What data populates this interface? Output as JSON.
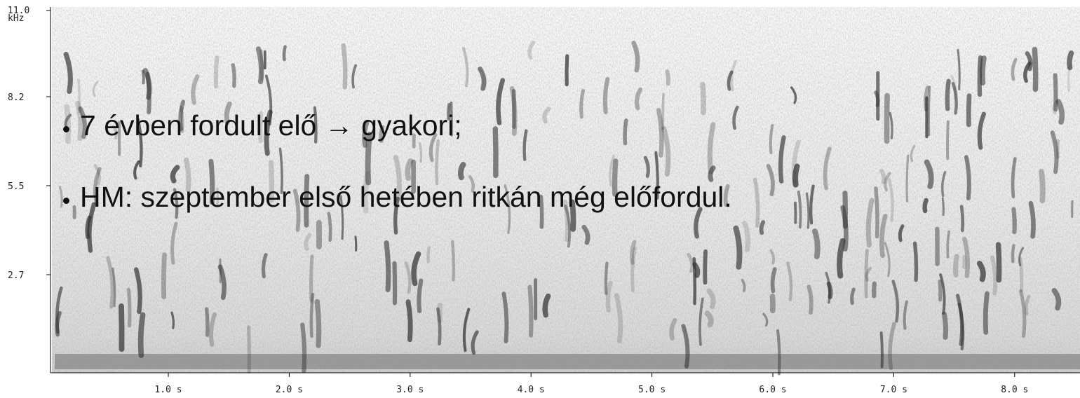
{
  "spectrogram": {
    "y_axis": {
      "ticks": [
        "11.0",
        "8.2",
        "5.5",
        "2.7"
      ],
      "unit": "kHz"
    },
    "x_axis": {
      "ticks": [
        "1.0 s",
        "2.0 s",
        "3.0 s",
        "4.0 s",
        "5.0 s",
        "6.0 s",
        "7.0 s",
        "8.0 s"
      ]
    }
  },
  "bullets": [
    "7 évben fordult elő → gyakori;",
    "HM: szeptember első hetében ritkán még előfordul."
  ]
}
